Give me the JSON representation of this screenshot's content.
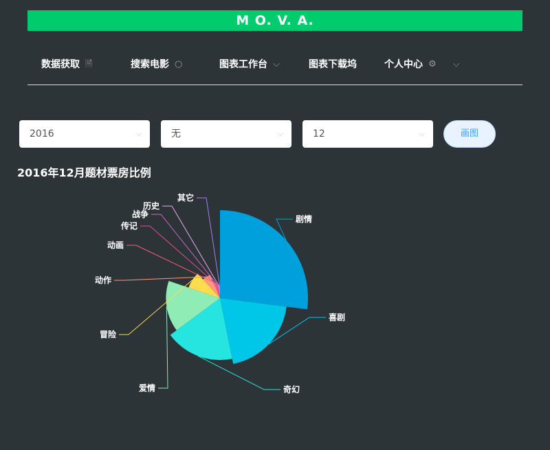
{
  "banner": {
    "title": "M O. V. A."
  },
  "nav": {
    "items": [
      {
        "label": "数据获取",
        "icon": "document-icon"
      },
      {
        "label": "搜索电影",
        "icon": "search-icon"
      },
      {
        "label": "图表工作台",
        "icon": "chevron-down-icon"
      },
      {
        "label": "图表下载坞"
      },
      {
        "label": "个人中心",
        "icon": "gear-icon"
      }
    ]
  },
  "controls": {
    "year": "2016",
    "type": "无",
    "month": "12",
    "draw_button": "画图"
  },
  "chart_title": "2016年12月题材票房比例",
  "chart_data": {
    "type": "pie",
    "rose_type": "radius",
    "title": "2016年12月题材票房比例",
    "categories": [
      "剧情",
      "喜剧",
      "奇幻",
      "爱情",
      "冒险",
      "动作",
      "动画",
      "传记",
      "战争",
      "历史",
      "其它"
    ],
    "values": [
      30,
      22,
      20,
      17,
      9,
      6,
      2.5,
      1.5,
      1,
      1,
      1
    ],
    "colors": [
      "#00a0dc",
      "#00c6e8",
      "#26e5e0",
      "#8fecb5",
      "#ffdb4d",
      "#ff9a7a",
      "#ff5a7e",
      "#e8489a",
      "#d06ac8",
      "#f0a8f0",
      "#a57cf0"
    ]
  }
}
